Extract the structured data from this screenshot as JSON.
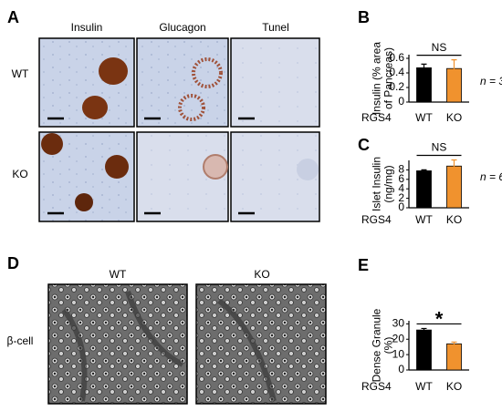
{
  "panels": {
    "A": {
      "letter": "A",
      "columns": [
        "Insulin",
        "Glucagon",
        "Tunel"
      ],
      "rows": [
        "WT",
        "KO"
      ]
    },
    "D": {
      "letter": "D",
      "columns": [
        "WT",
        "KO"
      ],
      "row": "β-cell"
    },
    "letters": [
      "B",
      "C",
      "E"
    ]
  },
  "chart_data": [
    {
      "type": "bar",
      "ylabel": [
        "Insulin (% area",
        "of Pancreas)"
      ],
      "group_label": "RGS4",
      "categories": [
        "WT",
        "KO"
      ],
      "values": [
        0.47,
        0.46
      ],
      "errors": [
        0.05,
        0.12
      ],
      "colors": [
        "#000000",
        "#f0922e"
      ],
      "ylim": [
        0,
        0.65
      ],
      "yticks": [
        0,
        0.2,
        0.4,
        0.6
      ],
      "annotation": "NS",
      "n_label": "n = 3"
    },
    {
      "type": "bar",
      "ylabel": [
        "Islet Insulin",
        "(ng/mg)"
      ],
      "group_label": "RGS4",
      "categories": [
        "WT",
        "KO"
      ],
      "values": [
        7.8,
        8.8
      ],
      "errors": [
        0.2,
        1.3
      ],
      "colors": [
        "#000000",
        "#f0922e"
      ],
      "ylim": [
        0,
        10
      ],
      "yticks": [
        0,
        2,
        4,
        6,
        8
      ],
      "annotation": "NS",
      "n_label": "n = 6"
    },
    {
      "type": "bar",
      "ylabel": [
        "Dense Granule",
        "(%)"
      ],
      "group_label": "RGS4",
      "categories": [
        "WT",
        "KO"
      ],
      "values": [
        26,
        17
      ],
      "errors": [
        1,
        1.2
      ],
      "colors": [
        "#000000",
        "#f0922e"
      ],
      "ylim": [
        0,
        32
      ],
      "yticks": [
        0,
        10,
        20,
        30
      ],
      "annotation": "*"
    }
  ]
}
